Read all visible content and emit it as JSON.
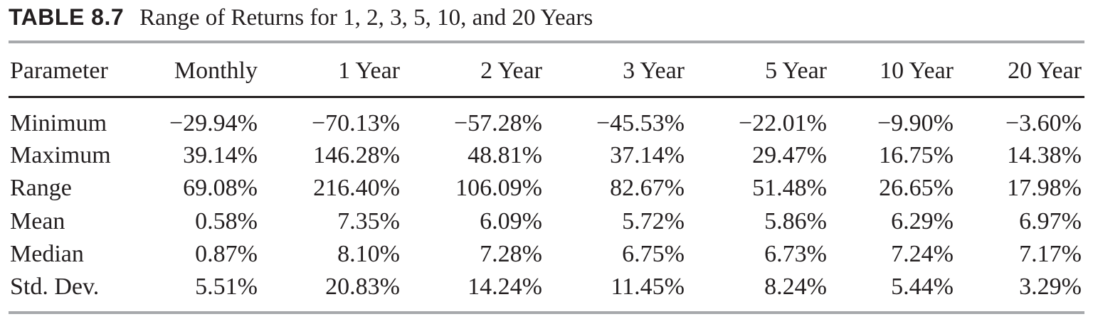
{
  "caption": {
    "label": "TABLE 8.7",
    "title": "Range of Returns for 1, 2, 3, 5, 10, and 20 Years"
  },
  "table": {
    "headers": [
      "Parameter",
      "Monthly",
      "1 Year",
      "2 Year",
      "3 Year",
      "5 Year",
      "10 Year",
      "20 Year"
    ],
    "rows": [
      [
        "Minimum",
        "−29.94%",
        "−70.13%",
        "−57.28%",
        "−45.53%",
        "−22.01%",
        "−9.90%",
        "−3.60%"
      ],
      [
        "Maximum",
        "39.14%",
        "146.28%",
        "48.81%",
        "37.14%",
        "29.47%",
        "16.75%",
        "14.38%"
      ],
      [
        "Range",
        "69.08%",
        "216.40%",
        "106.09%",
        "82.67%",
        "51.48%",
        "26.65%",
        "17.98%"
      ],
      [
        "Mean",
        "0.58%",
        "7.35%",
        "6.09%",
        "5.72%",
        "5.86%",
        "6.29%",
        "6.97%"
      ],
      [
        "Median",
        "0.87%",
        "8.10%",
        "7.28%",
        "6.75%",
        "6.73%",
        "7.24%",
        "7.17%"
      ],
      [
        "Std. Dev.",
        "5.51%",
        "20.83%",
        "14.24%",
        "11.45%",
        "8.24%",
        "5.44%",
        "3.29%"
      ]
    ]
  }
}
